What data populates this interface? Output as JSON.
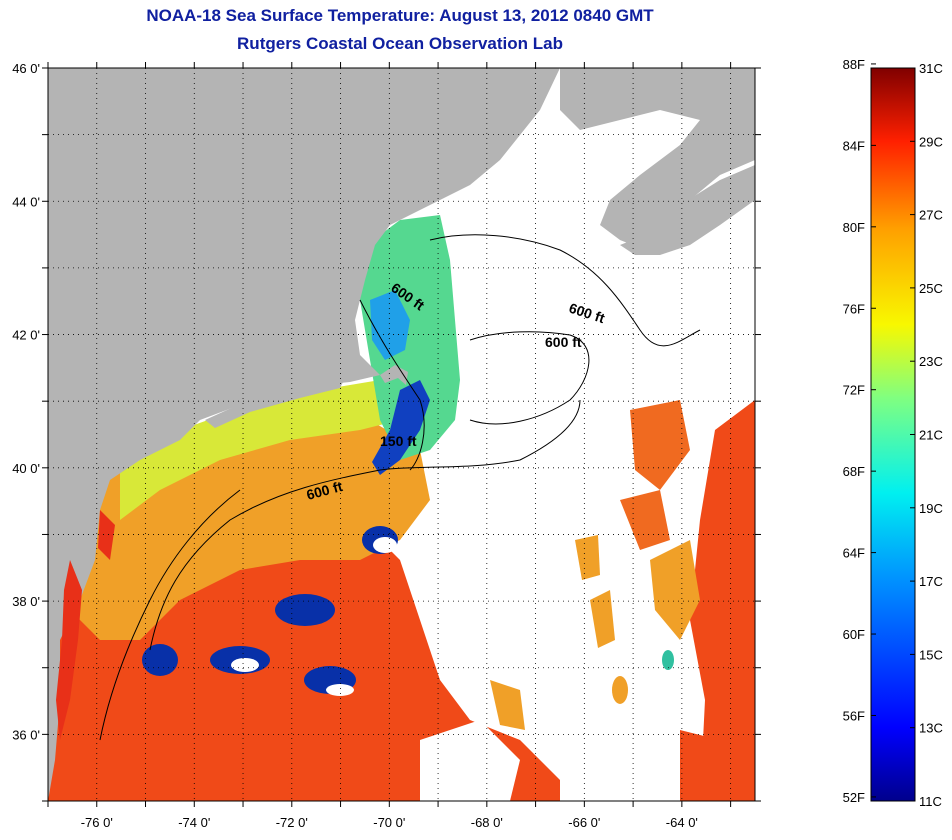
{
  "header": {
    "title": "NOAA-18 Sea Surface Temperature:  August 13, 2012 0840 GMT",
    "subtitle": "Rutgers Coastal Ocean Observation Lab"
  },
  "map": {
    "lon_range": [
      -77,
      -62.5
    ],
    "lat_range": [
      35,
      46
    ],
    "lon_ticks": [
      "-76 0'",
      "-74 0'",
      "-72 0'",
      "-70 0'",
      "-68 0'",
      "-66 0'",
      "-64 0'"
    ],
    "lat_ticks": [
      "46 0'",
      "44 0'",
      "42 0'",
      "40 0'",
      "38 0'",
      "36 0'"
    ],
    "contour_labels": [
      "600 ft",
      "600 ft",
      "600 ft",
      "150 ft",
      "600 ft"
    ],
    "colors": {
      "land": "#b4b4b4",
      "cloud": "#ffffff",
      "gulf_of_maine": "#55d890",
      "shelf": "#f0a028",
      "offshore": "#f04a18"
    }
  },
  "colorbar": {
    "f_labels": [
      "88F",
      "84F",
      "80F",
      "76F",
      "72F",
      "68F",
      "64F",
      "60F",
      "56F",
      "52F"
    ],
    "c_labels": [
      "31C",
      "29C",
      "27C",
      "25C",
      "23C",
      "21C",
      "19C",
      "17C",
      "15C",
      "13C",
      "11C"
    ],
    "range_c": [
      11,
      31
    ]
  }
}
